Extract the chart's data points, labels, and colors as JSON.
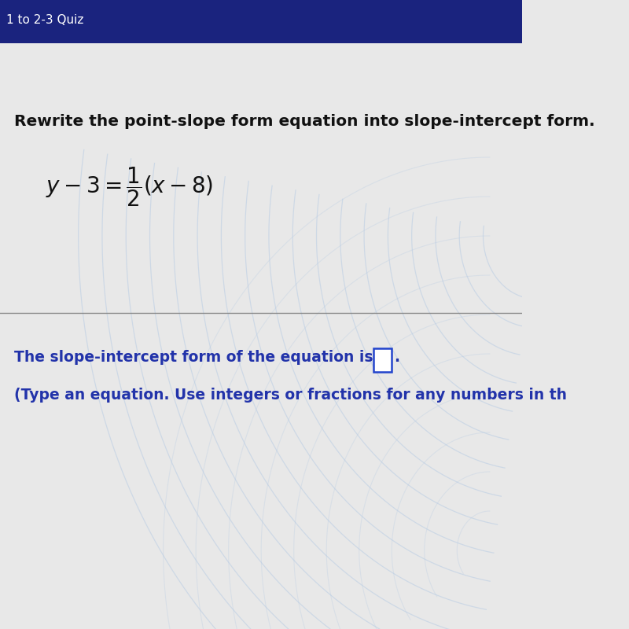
{
  "header_color": "#1a237e",
  "header_text": "1 to 2-3 Quiz",
  "body_bg_color": "#e8e8e8",
  "instruction_text": "Rewrite the point-slope form equation into slope-intercept form.",
  "instruction_color": "#111111",
  "instruction_fontsize": 14.5,
  "equation_color": "#111111",
  "equation_fontsize": 16,
  "divider_color": "#888888",
  "answer_text_color": "#2233aa",
  "answer_line1": "The slope-intercept form of the equation is",
  "answer_line2": "(Type an equation. Use integers or fractions for any numbers in th",
  "answer_fontsize": 13.5,
  "box_color": "#2244cc",
  "watermark_color": "#b8cce4",
  "watermark_alpha": 0.55
}
